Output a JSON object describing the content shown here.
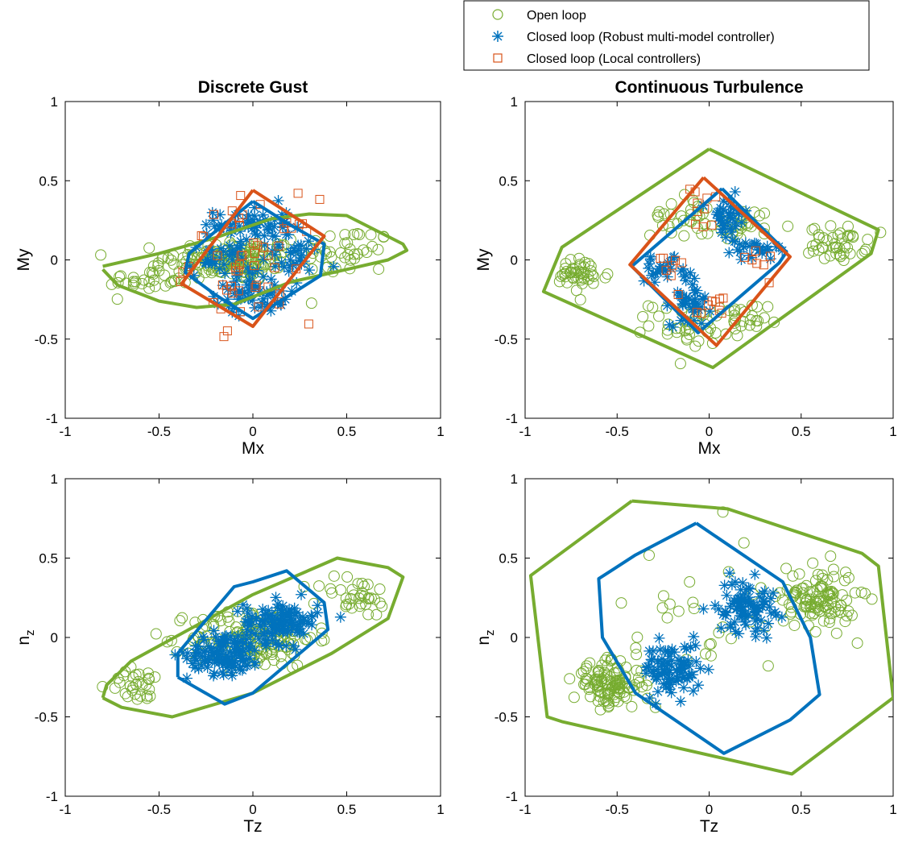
{
  "colors": {
    "open": "#77ac30",
    "robust": "#0072bd",
    "local": "#d95319"
  },
  "legend": {
    "open_label": "Open loop",
    "robust_label": "Closed loop (Robust multi-model controller)",
    "local_label": "Closed loop (Local controllers)"
  },
  "chart_data": [
    {
      "type": "scatter",
      "title": "Discrete Gust",
      "xlabel": "Mx",
      "ylabel": "My",
      "xlim": [
        -1,
        1
      ],
      "ylim": [
        -1,
        1
      ],
      "xticks": [
        "-1",
        "-0.5",
        "0",
        "0.5",
        "1"
      ],
      "yticks": [
        "-1",
        "-0.5",
        "0",
        "0.5",
        "1"
      ],
      "grid": false,
      "legend_position": "top-right, outside",
      "series": [
        {
          "name": "Open loop",
          "marker": "circle",
          "hull": [
            [
              -0.8,
              -0.06
            ],
            [
              -0.72,
              -0.16
            ],
            [
              -0.5,
              -0.26
            ],
            [
              -0.3,
              -0.3
            ],
            [
              -0.1,
              -0.28
            ],
            [
              0.2,
              -0.14
            ],
            [
              0.5,
              -0.06
            ],
            [
              0.72,
              0.0
            ],
            [
              0.82,
              0.06
            ],
            [
              0.8,
              0.1
            ],
            [
              0.5,
              0.28
            ],
            [
              0.3,
              0.29
            ],
            [
              0.1,
              0.26
            ],
            [
              -0.2,
              0.14
            ],
            [
              -0.5,
              0.04
            ],
            [
              -0.8,
              -0.04
            ]
          ],
          "clusters": [
            {
              "center": [
                -0.1,
                0.0
              ],
              "spread": [
                0.32,
                0.12
              ],
              "count": 160
            },
            {
              "center": [
                0.5,
                0.05
              ],
              "spread": [
                0.22,
                0.14
              ],
              "count": 40
            },
            {
              "center": [
                -0.55,
                -0.12
              ],
              "spread": [
                0.2,
                0.1
              ],
              "count": 35
            }
          ]
        },
        {
          "name": "Closed loop (Robust multi-model controller)",
          "marker": "asterisk",
          "hull": [
            [
              0.0,
              0.37
            ],
            [
              0.2,
              0.22
            ],
            [
              0.38,
              0.1
            ],
            [
              0.36,
              -0.1
            ],
            [
              0.2,
              -0.22
            ],
            [
              0.0,
              -0.37
            ],
            [
              -0.2,
              -0.22
            ],
            [
              -0.36,
              -0.08
            ],
            [
              -0.34,
              0.04
            ],
            [
              -0.18,
              0.2
            ],
            [
              0.0,
              0.37
            ]
          ],
          "clusters": [
            {
              "center": [
                0.0,
                0.22
              ],
              "spread": [
                0.18,
                0.12
              ],
              "count": 60
            },
            {
              "center": [
                0.0,
                -0.2
              ],
              "spread": [
                0.18,
                0.12
              ],
              "count": 60
            },
            {
              "center": [
                -0.18,
                0.0
              ],
              "spread": [
                0.15,
                0.1
              ],
              "count": 30
            },
            {
              "center": [
                0.2,
                0.02
              ],
              "spread": [
                0.15,
                0.1
              ],
              "count": 30
            }
          ]
        },
        {
          "name": "Closed loop (Local controllers)",
          "marker": "square",
          "hull": [
            [
              0.0,
              0.44
            ],
            [
              0.38,
              0.15
            ],
            [
              0.0,
              -0.42
            ],
            [
              -0.38,
              -0.15
            ],
            [
              0.0,
              0.44
            ]
          ],
          "clusters": [
            {
              "center": [
                0.0,
                0.0
              ],
              "spread": [
                0.3,
                0.35
              ],
              "count": 55
            }
          ]
        }
      ]
    },
    {
      "type": "scatter",
      "title": "Continuous Turbulence",
      "xlabel": "Mx",
      "ylabel": "My",
      "xlim": [
        -1,
        1
      ],
      "ylim": [
        -1,
        1
      ],
      "xticks": [
        "-1",
        "-0.5",
        "0",
        "0.5",
        "1"
      ],
      "yticks": [
        "-1",
        "-0.5",
        "0",
        "0.5",
        "1"
      ],
      "grid": false,
      "series": [
        {
          "name": "Open loop",
          "marker": "circle",
          "hull": [
            [
              0.0,
              0.7
            ],
            [
              0.92,
              0.19
            ],
            [
              0.88,
              0.04
            ],
            [
              0.02,
              -0.68
            ],
            [
              -0.9,
              -0.2
            ],
            [
              -0.8,
              0.08
            ],
            [
              0.0,
              0.7
            ]
          ],
          "clusters": [
            {
              "center": [
                -0.7,
                -0.1
              ],
              "spread": [
                0.14,
                0.1
              ],
              "count": 45
            },
            {
              "center": [
                0.7,
                0.1
              ],
              "spread": [
                0.14,
                0.1
              ],
              "count": 45
            },
            {
              "center": [
                -0.15,
                0.28
              ],
              "spread": [
                0.15,
                0.12
              ],
              "count": 30
            },
            {
              "center": [
                0.18,
                0.22
              ],
              "spread": [
                0.15,
                0.1
              ],
              "count": 30
            },
            {
              "center": [
                -0.1,
                -0.4
              ],
              "spread": [
                0.2,
                0.12
              ],
              "count": 40
            },
            {
              "center": [
                0.15,
                -0.4
              ],
              "spread": [
                0.15,
                0.12
              ],
              "count": 25
            }
          ]
        },
        {
          "name": "Closed loop (Robust multi-model controller)",
          "marker": "asterisk",
          "hull": [
            [
              0.07,
              0.45
            ],
            [
              0.42,
              0.05
            ],
            [
              0.38,
              -0.02
            ],
            [
              -0.06,
              -0.46
            ],
            [
              -0.42,
              -0.04
            ],
            [
              -0.38,
              0.0
            ],
            [
              0.07,
              0.45
            ]
          ],
          "clusters": [
            {
              "center": [
                0.1,
                0.25
              ],
              "spread": [
                0.1,
                0.15
              ],
              "count": 40
            },
            {
              "center": [
                -0.1,
                -0.25
              ],
              "spread": [
                0.1,
                0.15
              ],
              "count": 40
            },
            {
              "center": [
                -0.25,
                -0.06
              ],
              "spread": [
                0.12,
                0.06
              ],
              "count": 25
            },
            {
              "center": [
                0.25,
                0.06
              ],
              "spread": [
                0.12,
                0.06
              ],
              "count": 25
            }
          ]
        },
        {
          "name": "Closed loop (Local controllers)",
          "marker": "square",
          "hull": [
            [
              -0.03,
              0.52
            ],
            [
              0.44,
              0.02
            ],
            [
              0.04,
              -0.54
            ],
            [
              -0.43,
              -0.03
            ],
            [
              -0.03,
              0.52
            ]
          ],
          "clusters": [
            {
              "center": [
                -0.03,
                0.3
              ],
              "spread": [
                0.12,
                0.15
              ],
              "count": 10
            },
            {
              "center": [
                0.0,
                -0.3
              ],
              "spread": [
                0.12,
                0.15
              ],
              "count": 10
            },
            {
              "center": [
                -0.25,
                0.0
              ],
              "spread": [
                0.15,
                0.1
              ],
              "count": 7
            },
            {
              "center": [
                0.25,
                0.0
              ],
              "spread": [
                0.15,
                0.1
              ],
              "count": 7
            }
          ]
        }
      ]
    },
    {
      "type": "scatter",
      "title": "",
      "xlabel": "Tz",
      "ylabel": "n_z",
      "xlim": [
        -1,
        1
      ],
      "ylim": [
        -1,
        1
      ],
      "xticks": [
        "-1",
        "-0.5",
        "0",
        "0.5",
        "1"
      ],
      "yticks": [
        "-1",
        "-0.5",
        "0",
        "0.5",
        "1"
      ],
      "grid": false,
      "series": [
        {
          "name": "Open loop",
          "marker": "circle",
          "hull": [
            [
              -0.8,
              -0.38
            ],
            [
              -0.7,
              -0.44
            ],
            [
              -0.43,
              -0.5
            ],
            [
              0.0,
              -0.35
            ],
            [
              0.42,
              -0.1
            ],
            [
              0.72,
              0.12
            ],
            [
              0.8,
              0.38
            ],
            [
              0.72,
              0.44
            ],
            [
              0.45,
              0.5
            ],
            [
              0.0,
              0.27
            ],
            [
              -0.65,
              -0.15
            ],
            [
              -0.78,
              -0.3
            ],
            [
              -0.8,
              -0.38
            ]
          ],
          "clusters": [
            {
              "center": [
                0.0,
                0.0
              ],
              "spread": [
                0.3,
                0.17
              ],
              "count": 160
            },
            {
              "center": [
                0.55,
                0.25
              ],
              "spread": [
                0.18,
                0.12
              ],
              "count": 35
            },
            {
              "center": [
                -0.6,
                -0.3
              ],
              "spread": [
                0.15,
                0.1
              ],
              "count": 30
            }
          ]
        },
        {
          "name": "Closed loop (Robust multi-model controller)",
          "marker": "asterisk",
          "hull": [
            [
              -0.4,
              -0.25
            ],
            [
              -0.4,
              -0.1
            ],
            [
              -0.1,
              0.32
            ],
            [
              0.0,
              0.35
            ],
            [
              0.18,
              0.42
            ],
            [
              0.38,
              0.22
            ],
            [
              0.4,
              0.05
            ],
            [
              0.0,
              -0.35
            ],
            [
              -0.15,
              -0.42
            ],
            [
              -0.4,
              -0.25
            ]
          ],
          "clusters": [
            {
              "center": [
                -0.15,
                -0.1
              ],
              "spread": [
                0.18,
                0.12
              ],
              "count": 120
            },
            {
              "center": [
                0.15,
                0.1
              ],
              "spread": [
                0.18,
                0.12
              ],
              "count": 120
            }
          ]
        }
      ]
    },
    {
      "type": "scatter",
      "title": "",
      "xlabel": "Tz",
      "ylabel": "n_z",
      "xlim": [
        -1,
        1
      ],
      "ylim": [
        -1,
        1
      ],
      "xticks": [
        "-1",
        "-0.5",
        "0",
        "0.5",
        "1"
      ],
      "yticks": [
        "-1",
        "-0.5",
        "0",
        "0.5",
        "1"
      ],
      "grid": false,
      "series": [
        {
          "name": "Open loop",
          "marker": "circle",
          "hull": [
            [
              -0.42,
              0.86
            ],
            [
              0.1,
              0.81
            ],
            [
              0.83,
              0.53
            ],
            [
              0.92,
              0.45
            ],
            [
              1.0,
              -0.38
            ],
            [
              0.45,
              -0.86
            ],
            [
              -0.8,
              -0.53
            ],
            [
              -0.88,
              -0.5
            ],
            [
              -0.97,
              0.39
            ],
            [
              -0.42,
              0.86
            ]
          ],
          "clusters": [
            {
              "center": [
                -0.55,
                -0.3
              ],
              "spread": [
                0.17,
                0.12
              ],
              "count": 110
            },
            {
              "center": [
                0.6,
                0.25
              ],
              "spread": [
                0.18,
                0.18
              ],
              "count": 110
            },
            {
              "center": [
                -0.1,
                0.0
              ],
              "spread": [
                0.55,
                0.6
              ],
              "count": 35
            }
          ]
        },
        {
          "name": "Closed loop (Robust multi-model controller)",
          "marker": "asterisk",
          "hull": [
            [
              -0.07,
              0.72
            ],
            [
              0.4,
              0.35
            ],
            [
              0.55,
              0.0
            ],
            [
              0.6,
              -0.36
            ],
            [
              0.44,
              -0.52
            ],
            [
              0.08,
              -0.73
            ],
            [
              -0.4,
              -0.35
            ],
            [
              -0.58,
              0.0
            ],
            [
              -0.6,
              0.37
            ],
            [
              -0.4,
              0.52
            ],
            [
              -0.07,
              0.72
            ]
          ],
          "clusters": [
            {
              "center": [
                -0.2,
                -0.2
              ],
              "spread": [
                0.14,
                0.15
              ],
              "count": 90
            },
            {
              "center": [
                0.2,
                0.2
              ],
              "spread": [
                0.14,
                0.15
              ],
              "count": 90
            }
          ]
        }
      ]
    }
  ]
}
